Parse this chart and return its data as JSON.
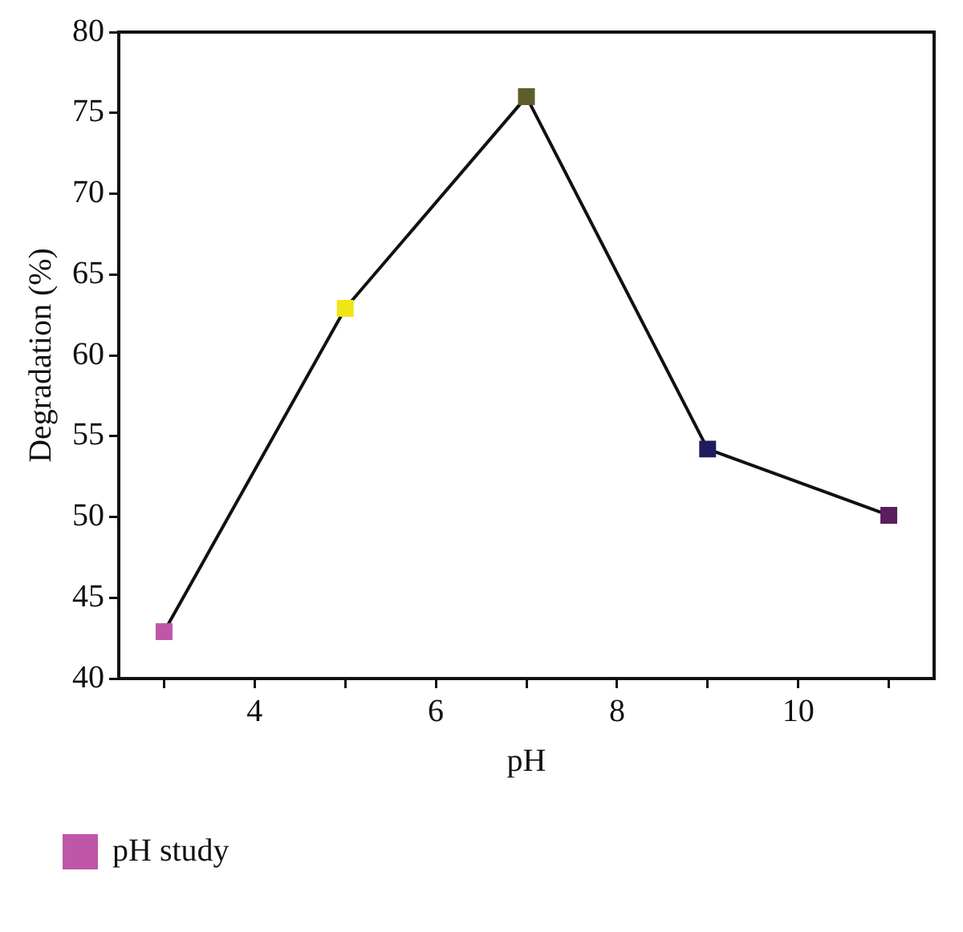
{
  "chart_data": {
    "type": "line",
    "xlabel": "pH",
    "ylabel": "Degradation (%)",
    "x": [
      3,
      5,
      7,
      9,
      11
    ],
    "series": [
      {
        "name": "pH study",
        "color": "#111111",
        "colors": [
          "#c056a8",
          "#f0e614",
          "#5e5e2a",
          "#1e1e5e",
          "#5a1e5e"
        ],
        "values": [
          42.9,
          62.9,
          76.0,
          54.2,
          50.1
        ]
      }
    ],
    "xlim": [
      2.5,
      11.5
    ],
    "xticks": [
      {
        "value": 3,
        "label": null
      },
      4,
      {
        "value": 5,
        "label": null
      },
      6,
      {
        "value": 7,
        "label": null
      },
      8,
      {
        "value": 9,
        "label": null
      },
      10,
      {
        "value": 11,
        "label": null
      }
    ],
    "ylim": [
      40,
      80
    ],
    "yticks": [
      40,
      45,
      50,
      55,
      60,
      65,
      70,
      75,
      80
    ],
    "grid": false,
    "legend": "bottom left",
    "marker": "square",
    "line_style": "solid"
  }
}
